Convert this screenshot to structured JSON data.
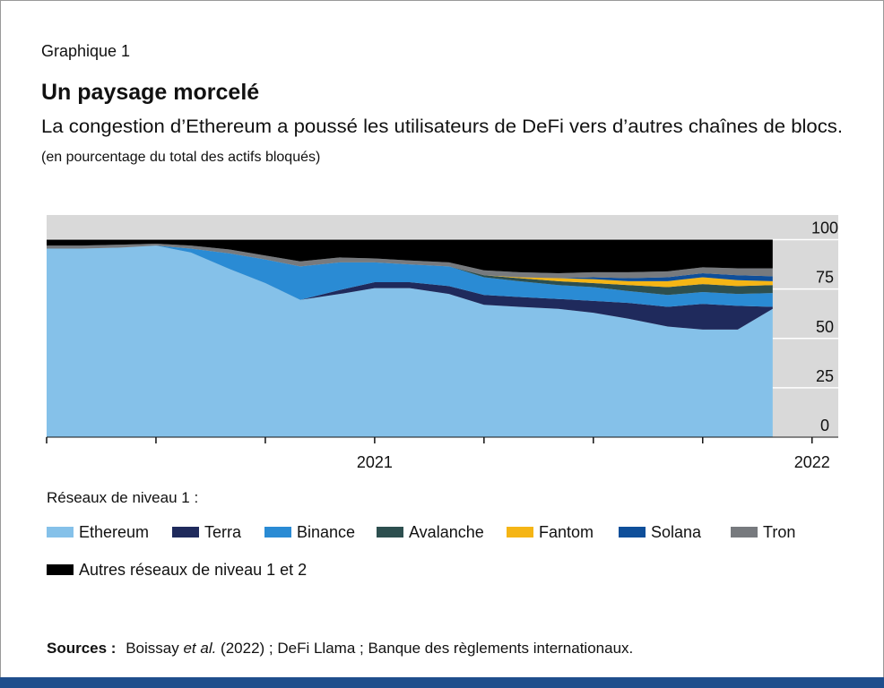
{
  "chart_data": {
    "type": "stacked_area",
    "label": "Graphique 1",
    "title": "Un paysage morcelé",
    "subtitle": "La congestion d’Ethereum a poussé les utilisateurs de DeFi vers d’autres chaînes de blocs.",
    "units": "(en pourcentage du total des actifs bloqués)",
    "x": [
      2020.25,
      2020.33,
      2020.42,
      2020.5,
      2020.58,
      2020.67,
      2020.75,
      2020.83,
      2020.92,
      2021.0,
      2021.08,
      2021.17,
      2021.25,
      2021.33,
      2021.42,
      2021.5,
      2021.58,
      2021.67,
      2021.75,
      2021.83,
      2021.91
    ],
    "xlim": [
      2020.25,
      2022.06
    ],
    "xticks": [
      2021,
      2022
    ],
    "xminorticks": [
      2020.25,
      2020.5,
      2020.75,
      2021.25,
      2021.5,
      2021.75
    ],
    "ylim": [
      0,
      112.5
    ],
    "yticks": [
      0,
      25,
      50,
      75,
      100
    ],
    "grid": true,
    "legend_title": "Réseaux de niveau 1 :",
    "series": [
      {
        "name": "Ethereum",
        "color": "#85c1e9",
        "values": [
          95.5,
          95.5,
          96,
          97,
          93.5,
          85,
          78,
          69.5,
          72.5,
          75.5,
          75.5,
          72.5,
          67,
          66,
          65,
          63,
          60,
          56,
          54.5,
          54.5,
          65
        ]
      },
      {
        "name": "Terra",
        "color": "#1f2a5c",
        "values": [
          0,
          0,
          0,
          0,
          0,
          0,
          0,
          0,
          2,
          3,
          3,
          4,
          5,
          5,
          5,
          6,
          8,
          10,
          13,
          12,
          1
        ]
      },
      {
        "name": "Binance",
        "color": "#2a8bd4",
        "values": [
          0,
          0,
          0,
          0,
          2,
          8,
          12,
          17,
          14,
          10,
          9,
          10,
          9,
          8,
          7,
          7,
          6,
          6,
          6,
          6,
          7
        ]
      },
      {
        "name": "Avalanche",
        "color": "#2d4f4f",
        "values": [
          0,
          0,
          0,
          0,
          0,
          0,
          0,
          0,
          0,
          0,
          0,
          0,
          1,
          1.5,
          2,
          2,
          3,
          4,
          4,
          4,
          4
        ]
      },
      {
        "name": "Fantom",
        "color": "#f5b515",
        "values": [
          0,
          0,
          0,
          0,
          0,
          0,
          0,
          0,
          0,
          0,
          0,
          0,
          0,
          0.5,
          1.5,
          2,
          2,
          3,
          3.5,
          3,
          2
        ]
      },
      {
        "name": "Solana",
        "color": "#0f4f9a",
        "values": [
          0,
          0,
          0,
          0,
          0,
          0,
          0,
          0,
          0,
          0,
          0,
          0,
          0,
          0,
          0,
          1,
          1.5,
          2,
          2,
          2.5,
          2.5
        ]
      },
      {
        "name": "Tron",
        "color": "#777a7e",
        "values": [
          1.5,
          1.5,
          1.5,
          1,
          1.5,
          2,
          2,
          2.5,
          2.5,
          2,
          2,
          2,
          2.5,
          2.5,
          2.5,
          2.5,
          3,
          3,
          3,
          3.5,
          4
        ]
      },
      {
        "name": "Autres réseaux de niveau 1 et 2",
        "color": "#000000",
        "values": [
          3,
          3,
          2.5,
          2,
          3,
          5,
          8,
          11,
          9,
          9.5,
          10.5,
          11.5,
          15.5,
          16.5,
          17,
          16.5,
          16.5,
          16,
          14,
          14.5,
          14.5
        ]
      }
    ],
    "source_label": "Sources :",
    "source_parts": [
      "Boissay ",
      "et al.",
      " (2022) ; DeFi Llama ; Banque des règlements internationaux."
    ]
  }
}
